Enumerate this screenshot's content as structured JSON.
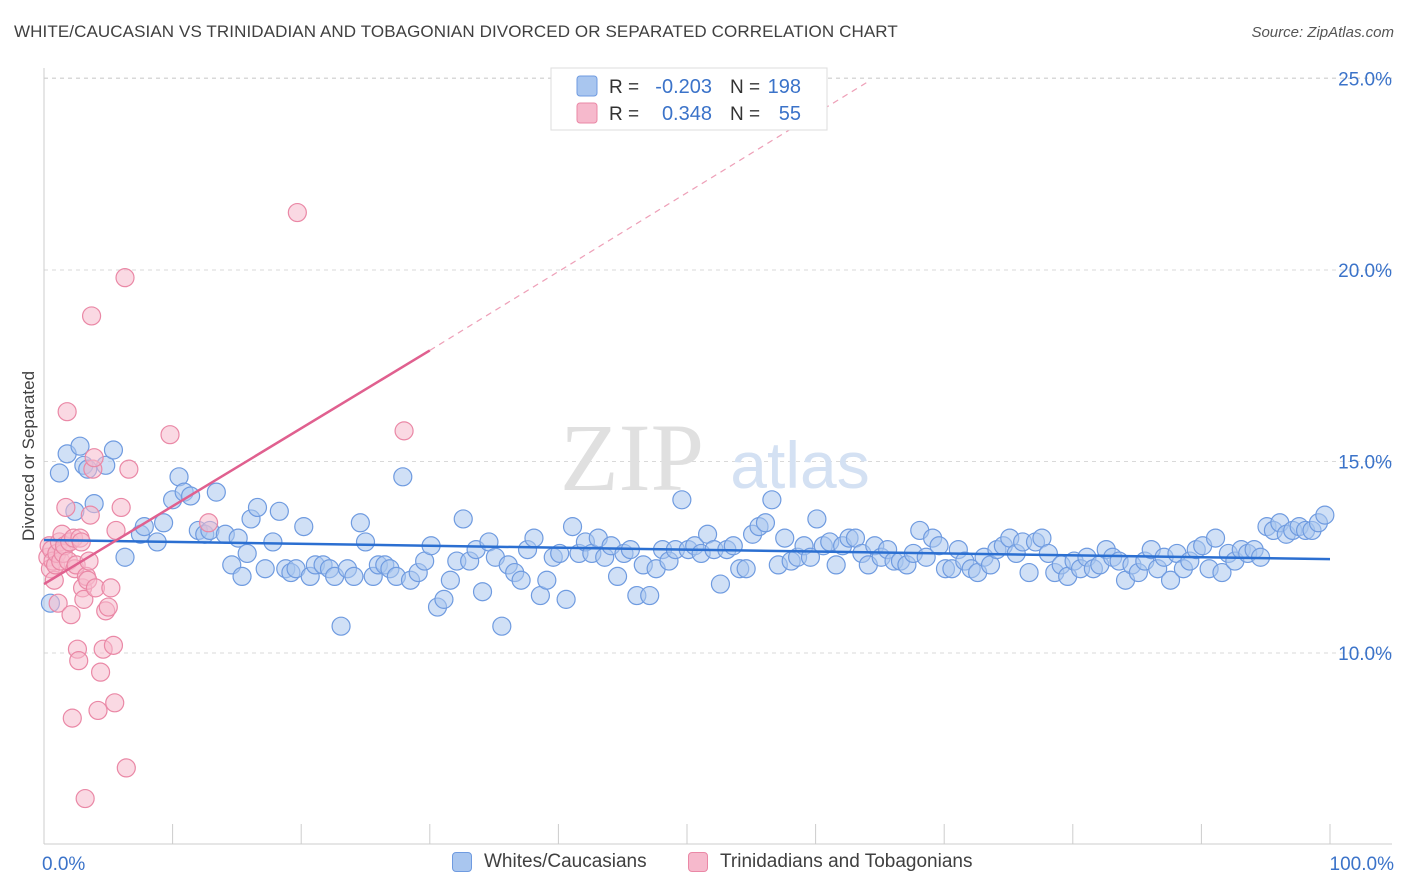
{
  "title": "WHITE/CAUCASIAN VS TRINIDADIAN AND TOBAGONIAN DIVORCED OR SEPARATED CORRELATION CHART",
  "source": "Source: ZipAtlas.com",
  "watermark": {
    "zip": "ZIP",
    "atlas": "atlas"
  },
  "colors": {
    "blue_fill": "#a9c6ef",
    "blue_stroke": "#6f9be0",
    "blue_line": "#2b6fd1",
    "pink_fill": "#f6b9cc",
    "pink_stroke": "#ea88a6",
    "pink_line": "#e0608f",
    "tick_label": "#3b73c9",
    "grid": "#d9d9d9"
  },
  "legend_top": {
    "rows": [
      {
        "r_label": "R = ",
        "r_value": "-0.203",
        "n_label": "N = ",
        "n_value": "198"
      },
      {
        "r_label": "R = ",
        "r_value": "0.348",
        "n_label": "N = ",
        "n_value": "55"
      }
    ]
  },
  "legend_bottom": [
    {
      "label": "Whites/Caucasians"
    },
    {
      "label": "Trinidadians and Tobagonians"
    }
  ],
  "chart_data": {
    "type": "scatter",
    "ylabel": "Divorced or Separated",
    "xlim": [
      0,
      100
    ],
    "ylim": [
      5.0,
      25.5
    ],
    "x_tick_labels": [
      {
        "value": 0,
        "label": "0.0%"
      },
      {
        "value": 100,
        "label": "100.0%"
      }
    ],
    "x_minor_ticks": [
      0,
      10,
      20,
      30,
      40,
      50,
      60,
      70,
      80,
      90,
      100
    ],
    "y_ticks": [
      {
        "value": 10,
        "label": "10.0%"
      },
      {
        "value": 15,
        "label": "15.0%"
      },
      {
        "value": 20,
        "label": "20.0%"
      },
      {
        "value": 25,
        "label": "25.0%"
      }
    ],
    "series": [
      {
        "name": "Whites/Caucasians",
        "r": -0.203,
        "n": 198,
        "trend": {
          "x": [
            0,
            100
          ],
          "y": [
            12.95,
            12.45
          ],
          "dashed": false
        },
        "points": [
          [
            0.5,
            11.3
          ],
          [
            1.2,
            14.7
          ],
          [
            1.8,
            15.2
          ],
          [
            2.4,
            13.7
          ],
          [
            2.8,
            15.4
          ],
          [
            3.1,
            14.9
          ],
          [
            3.4,
            14.8
          ],
          [
            3.9,
            13.9
          ],
          [
            4.8,
            14.9
          ],
          [
            5.4,
            15.3
          ],
          [
            6.3,
            12.5
          ],
          [
            7.5,
            13.1
          ],
          [
            7.8,
            13.3
          ],
          [
            8.8,
            12.9
          ],
          [
            9.3,
            13.4
          ],
          [
            10.0,
            14.0
          ],
          [
            10.5,
            14.6
          ],
          [
            10.9,
            14.2
          ],
          [
            11.4,
            14.1
          ],
          [
            12.0,
            13.2
          ],
          [
            12.5,
            13.1
          ],
          [
            12.9,
            13.2
          ],
          [
            13.4,
            14.2
          ],
          [
            14.1,
            13.1
          ],
          [
            14.6,
            12.3
          ],
          [
            15.1,
            13.0
          ],
          [
            15.4,
            12.0
          ],
          [
            15.8,
            12.6
          ],
          [
            16.1,
            13.5
          ],
          [
            16.6,
            13.8
          ],
          [
            17.2,
            12.2
          ],
          [
            17.8,
            12.9
          ],
          [
            18.3,
            13.7
          ],
          [
            18.8,
            12.2
          ],
          [
            19.2,
            12.1
          ],
          [
            19.6,
            12.2
          ],
          [
            20.2,
            13.3
          ],
          [
            20.7,
            12.0
          ],
          [
            21.1,
            12.3
          ],
          [
            21.7,
            12.3
          ],
          [
            22.2,
            12.2
          ],
          [
            22.6,
            12.0
          ],
          [
            23.1,
            10.7
          ],
          [
            23.6,
            12.2
          ],
          [
            24.1,
            12.0
          ],
          [
            24.6,
            13.4
          ],
          [
            25.0,
            12.9
          ],
          [
            25.6,
            12.0
          ],
          [
            26.0,
            12.3
          ],
          [
            26.5,
            12.3
          ],
          [
            26.9,
            12.2
          ],
          [
            27.4,
            12.0
          ],
          [
            27.9,
            14.6
          ],
          [
            28.5,
            11.9
          ],
          [
            29.1,
            12.1
          ],
          [
            29.6,
            12.4
          ],
          [
            30.1,
            12.8
          ],
          [
            30.6,
            11.2
          ],
          [
            31.1,
            11.4
          ],
          [
            31.6,
            11.9
          ],
          [
            32.1,
            12.4
          ],
          [
            32.6,
            13.5
          ],
          [
            33.1,
            12.4
          ],
          [
            33.6,
            12.7
          ],
          [
            34.1,
            11.6
          ],
          [
            34.6,
            12.9
          ],
          [
            35.1,
            12.5
          ],
          [
            35.6,
            10.7
          ],
          [
            36.1,
            12.3
          ],
          [
            36.6,
            12.1
          ],
          [
            37.1,
            11.9
          ],
          [
            37.6,
            12.7
          ],
          [
            38.1,
            13.0
          ],
          [
            38.6,
            11.5
          ],
          [
            39.1,
            11.9
          ],
          [
            39.6,
            12.5
          ],
          [
            40.1,
            12.6
          ],
          [
            40.6,
            11.4
          ],
          [
            41.1,
            13.3
          ],
          [
            41.6,
            12.6
          ],
          [
            42.1,
            12.9
          ],
          [
            42.6,
            12.6
          ],
          [
            43.1,
            13.0
          ],
          [
            43.6,
            12.5
          ],
          [
            44.1,
            12.8
          ],
          [
            44.6,
            12.0
          ],
          [
            45.1,
            12.6
          ],
          [
            45.6,
            12.7
          ],
          [
            46.1,
            11.5
          ],
          [
            46.6,
            12.3
          ],
          [
            47.1,
            11.5
          ],
          [
            47.6,
            12.2
          ],
          [
            48.1,
            12.7
          ],
          [
            48.6,
            12.4
          ],
          [
            49.1,
            12.7
          ],
          [
            49.6,
            14.0
          ],
          [
            50.1,
            12.7
          ],
          [
            50.6,
            12.8
          ],
          [
            51.1,
            12.6
          ],
          [
            51.6,
            13.1
          ],
          [
            52.1,
            12.7
          ],
          [
            52.6,
            11.8
          ],
          [
            53.1,
            12.7
          ],
          [
            53.6,
            12.8
          ],
          [
            54.1,
            12.2
          ],
          [
            54.6,
            12.2
          ],
          [
            55.1,
            13.1
          ],
          [
            55.6,
            13.3
          ],
          [
            56.1,
            13.4
          ],
          [
            56.6,
            14.0
          ],
          [
            57.1,
            12.3
          ],
          [
            57.6,
            13.0
          ],
          [
            58.1,
            12.4
          ],
          [
            58.6,
            12.5
          ],
          [
            59.1,
            12.8
          ],
          [
            59.6,
            12.5
          ],
          [
            60.1,
            13.5
          ],
          [
            60.6,
            12.8
          ],
          [
            61.1,
            12.9
          ],
          [
            61.6,
            12.3
          ],
          [
            62.1,
            12.8
          ],
          [
            62.6,
            13.0
          ],
          [
            63.1,
            13.0
          ],
          [
            63.6,
            12.6
          ],
          [
            64.1,
            12.3
          ],
          [
            64.6,
            12.8
          ],
          [
            65.1,
            12.5
          ],
          [
            65.6,
            12.7
          ],
          [
            66.1,
            12.4
          ],
          [
            66.6,
            12.4
          ],
          [
            67.1,
            12.3
          ],
          [
            67.6,
            12.6
          ],
          [
            68.1,
            13.2
          ],
          [
            68.6,
            12.5
          ],
          [
            69.1,
            13.0
          ],
          [
            69.6,
            12.8
          ],
          [
            70.1,
            12.2
          ],
          [
            70.6,
            12.2
          ],
          [
            71.1,
            12.7
          ],
          [
            71.6,
            12.4
          ],
          [
            72.1,
            12.2
          ],
          [
            72.6,
            12.1
          ],
          [
            73.1,
            12.5
          ],
          [
            73.6,
            12.3
          ],
          [
            74.1,
            12.7
          ],
          [
            74.6,
            12.8
          ],
          [
            75.1,
            13.0
          ],
          [
            75.6,
            12.6
          ],
          [
            76.1,
            12.9
          ],
          [
            76.6,
            12.1
          ],
          [
            77.1,
            12.9
          ],
          [
            77.6,
            13.0
          ],
          [
            78.1,
            12.6
          ],
          [
            78.6,
            12.1
          ],
          [
            79.1,
            12.3
          ],
          [
            79.6,
            12.0
          ],
          [
            80.1,
            12.4
          ],
          [
            80.6,
            12.2
          ],
          [
            81.1,
            12.5
          ],
          [
            81.6,
            12.2
          ],
          [
            82.1,
            12.3
          ],
          [
            82.6,
            12.7
          ],
          [
            83.1,
            12.5
          ],
          [
            83.6,
            12.4
          ],
          [
            84.1,
            11.9
          ],
          [
            84.6,
            12.3
          ],
          [
            85.1,
            12.1
          ],
          [
            85.6,
            12.4
          ],
          [
            86.1,
            12.7
          ],
          [
            86.6,
            12.2
          ],
          [
            87.1,
            12.5
          ],
          [
            87.6,
            11.9
          ],
          [
            88.1,
            12.6
          ],
          [
            88.6,
            12.2
          ],
          [
            89.1,
            12.4
          ],
          [
            89.6,
            12.7
          ],
          [
            90.1,
            12.8
          ],
          [
            90.6,
            12.2
          ],
          [
            91.1,
            13.0
          ],
          [
            91.6,
            12.1
          ],
          [
            92.1,
            12.6
          ],
          [
            92.6,
            12.4
          ],
          [
            93.1,
            12.7
          ],
          [
            93.6,
            12.6
          ],
          [
            94.1,
            12.7
          ],
          [
            94.6,
            12.5
          ],
          [
            95.1,
            13.3
          ],
          [
            95.6,
            13.2
          ],
          [
            96.1,
            13.4
          ],
          [
            96.6,
            13.1
          ],
          [
            97.1,
            13.2
          ],
          [
            97.6,
            13.3
          ],
          [
            98.1,
            13.2
          ],
          [
            98.6,
            13.2
          ],
          [
            99.1,
            13.4
          ],
          [
            99.6,
            13.6
          ]
        ]
      },
      {
        "name": "Trinidadians and Tobagonians",
        "r": 0.348,
        "n": 55,
        "trend": {
          "x": [
            0,
            30
          ],
          "y": [
            11.8,
            17.9
          ],
          "dashed": false
        },
        "trend_extension": {
          "x": [
            30,
            64
          ],
          "y": [
            17.9,
            24.9
          ],
          "dashed": true
        },
        "points": [
          [
            0.3,
            12.5
          ],
          [
            0.4,
            12.8
          ],
          [
            0.5,
            12.2
          ],
          [
            0.6,
            12.7
          ],
          [
            0.7,
            12.4
          ],
          [
            0.8,
            11.9
          ],
          [
            0.9,
            12.3
          ],
          [
            1.0,
            12.6
          ],
          [
            1.1,
            11.3
          ],
          [
            1.2,
            12.9
          ],
          [
            1.3,
            12.4
          ],
          [
            1.4,
            13.1
          ],
          [
            1.5,
            12.6
          ],
          [
            1.6,
            12.8
          ],
          [
            1.7,
            13.8
          ],
          [
            1.8,
            16.3
          ],
          [
            1.9,
            12.4
          ],
          [
            2.0,
            12.9
          ],
          [
            2.1,
            11.0
          ],
          [
            2.2,
            8.3
          ],
          [
            2.3,
            13.0
          ],
          [
            2.4,
            12.2
          ],
          [
            2.5,
            12.3
          ],
          [
            2.6,
            10.1
          ],
          [
            2.7,
            9.8
          ],
          [
            2.8,
            13.0
          ],
          [
            2.9,
            12.9
          ],
          [
            3.0,
            11.7
          ],
          [
            3.1,
            11.4
          ],
          [
            3.2,
            6.2
          ],
          [
            3.3,
            12.0
          ],
          [
            3.4,
            11.9
          ],
          [
            3.5,
            12.4
          ],
          [
            3.6,
            13.6
          ],
          [
            3.7,
            18.8
          ],
          [
            3.8,
            14.8
          ],
          [
            3.9,
            15.1
          ],
          [
            4.0,
            11.7
          ],
          [
            4.2,
            8.5
          ],
          [
            4.4,
            9.5
          ],
          [
            4.6,
            10.1
          ],
          [
            4.8,
            11.1
          ],
          [
            5.0,
            11.2
          ],
          [
            5.2,
            11.7
          ],
          [
            5.4,
            10.2
          ],
          [
            5.5,
            8.7
          ],
          [
            5.6,
            13.2
          ],
          [
            6.0,
            13.8
          ],
          [
            6.4,
            7.0
          ],
          [
            6.6,
            14.8
          ],
          [
            6.3,
            19.8
          ],
          [
            9.8,
            15.7
          ],
          [
            12.8,
            13.4
          ],
          [
            19.7,
            21.5
          ],
          [
            28.0,
            15.8
          ]
        ]
      }
    ]
  }
}
